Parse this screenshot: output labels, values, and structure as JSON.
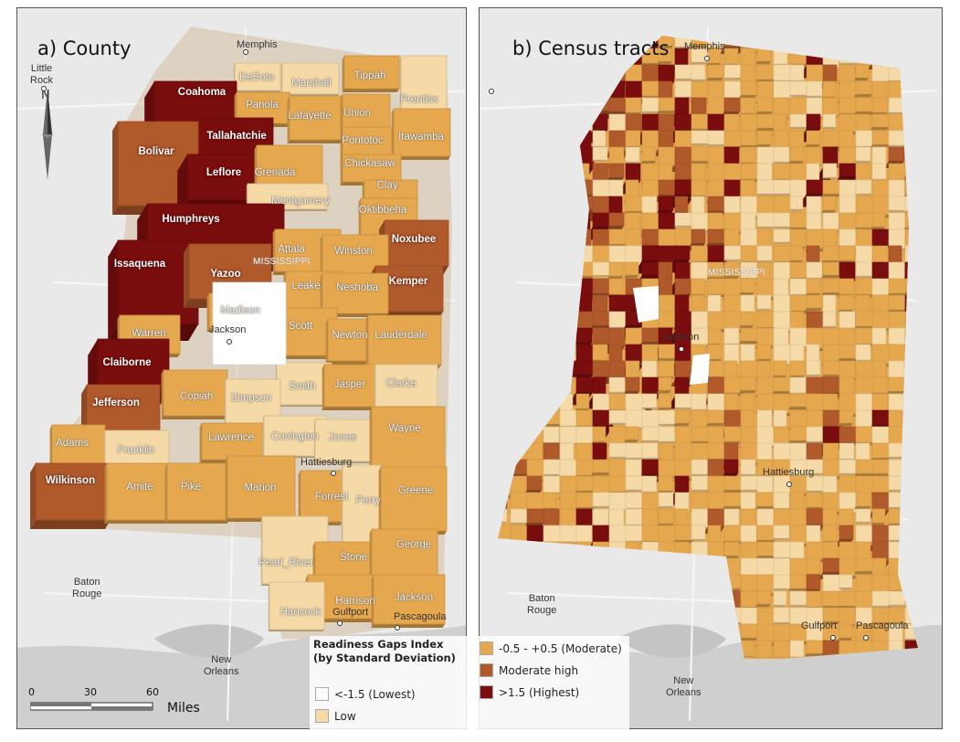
{
  "panels": {
    "a": {
      "title": "a) County",
      "state_label": "MISSISSIPPI",
      "reference_places": {
        "memphis": "Memphis",
        "little_rock": "Little\nRock",
        "baton_rouge": "Baton\nRouge",
        "new_orleans": "New\nOrleans",
        "jackson": "Jackson",
        "hattiesburg": "Hattiesburg",
        "gulfport": "Gulfport",
        "pascagoula": "Pascagoula"
      },
      "counties": {
        "desoto": {
          "name": "DeSoto",
          "class": "low"
        },
        "marshall": {
          "name": "Marshall",
          "class": "low"
        },
        "tippah": {
          "name": "Tippah",
          "class": "moderate"
        },
        "prentiss": {
          "name": "Prentiss",
          "class": "low"
        },
        "coahoma": {
          "name": "Coahoma",
          "class": "highest"
        },
        "panola": {
          "name": "Panola",
          "class": "moderate"
        },
        "lafayette": {
          "name": "Lafayette",
          "class": "moderate"
        },
        "union": {
          "name": "Union",
          "class": "moderate"
        },
        "tallahatchie": {
          "name": "Tallahatchie",
          "class": "highest"
        },
        "pontotoc": {
          "name": "Pontotoc",
          "class": "moderate"
        },
        "itawamba": {
          "name": "Itawamba",
          "class": "moderate"
        },
        "bolivar": {
          "name": "Bolivar",
          "class": "moderate_high"
        },
        "chickasaw": {
          "name": "Chickasaw",
          "class": "moderate"
        },
        "leflore": {
          "name": "Leflore",
          "class": "highest"
        },
        "grenada": {
          "name": "Grenada",
          "class": "moderate"
        },
        "clay": {
          "name": "Clay",
          "class": "moderate"
        },
        "montgomery": {
          "name": "Montgomery",
          "class": "low"
        },
        "oktibbeha": {
          "name": "Oktibbeha",
          "class": "moderate"
        },
        "humphreys": {
          "name": "Humphreys",
          "class": "highest"
        },
        "noxubee": {
          "name": "Noxubee",
          "class": "moderate_high"
        },
        "issaquena": {
          "name": "Issaquena",
          "class": "highest"
        },
        "attala": {
          "name": "Attala",
          "class": "moderate"
        },
        "winston": {
          "name": "Winston",
          "class": "moderate"
        },
        "yazoo": {
          "name": "Yazoo",
          "class": "moderate_high"
        },
        "kemper": {
          "name": "Kemper",
          "class": "moderate_high"
        },
        "leake": {
          "name": "Leake",
          "class": "moderate"
        },
        "neshoba": {
          "name": "Neshoba",
          "class": "moderate"
        },
        "madison": {
          "name": "Madison",
          "class": "moderate"
        },
        "warren": {
          "name": "Warren",
          "class": "moderate"
        },
        "scott": {
          "name": "Scott",
          "class": "moderate"
        },
        "newton": {
          "name": "Newton",
          "class": "moderate"
        },
        "lauderdale": {
          "name": "Lauderdale",
          "class": "moderate"
        },
        "claiborne": {
          "name": "Claiborne",
          "class": "highest"
        },
        "smith": {
          "name": "Smith",
          "class": "low"
        },
        "jasper": {
          "name": "Jasper",
          "class": "moderate"
        },
        "clarke": {
          "name": "Clarke",
          "class": "low"
        },
        "copiah": {
          "name": "Copiah",
          "class": "moderate"
        },
        "simpson": {
          "name": "Simpson",
          "class": "low"
        },
        "jefferson": {
          "name": "Jefferson",
          "class": "moderate_high"
        },
        "lawrence": {
          "name": "Lawrence",
          "class": "moderate"
        },
        "covington": {
          "name": "Covington",
          "class": "low"
        },
        "jones": {
          "name": "Jones",
          "class": "low"
        },
        "adams": {
          "name": "Adams",
          "class": "moderate"
        },
        "franklin": {
          "name": "Franklin",
          "class": "low"
        },
        "wayne": {
          "name": "Wayne",
          "class": "moderate"
        },
        "wilkinson": {
          "name": "Wilkinson",
          "class": "moderate_high"
        },
        "amite": {
          "name": "Amite",
          "class": "moderate"
        },
        "pike": {
          "name": "Pike",
          "class": "moderate"
        },
        "marion": {
          "name": "Marion",
          "class": "moderate"
        },
        "forrest": {
          "name": "Forrest",
          "class": "moderate"
        },
        "perry": {
          "name": "Perry",
          "class": "low"
        },
        "greene": {
          "name": "Greene",
          "class": "moderate"
        },
        "pearl_river": {
          "name": "Pearl_River",
          "class": "low"
        },
        "stone": {
          "name": "Stone",
          "class": "moderate"
        },
        "george": {
          "name": "George",
          "class": "moderate"
        },
        "harrison": {
          "name": "Harrison",
          "class": "moderate"
        },
        "jackson": {
          "name": "Jackson",
          "class": "moderate"
        },
        "hancock": {
          "name": "Hancock",
          "class": "low"
        },
        "hinds": {
          "name": "",
          "class": "lowest"
        }
      },
      "north_arrow": "N",
      "scale_bar": {
        "ticks": [
          "0",
          "30",
          "60"
        ],
        "units": "Miles"
      }
    },
    "b": {
      "title": "b) Census tracts",
      "state_label": "MISSISSIPPI",
      "reference_places": {
        "memphis": "Memphis",
        "baton_rouge": "Baton\nRouge",
        "new_orleans": "New\nOrleans",
        "jackson": "Jackson",
        "hattiesburg": "Hattiesburg",
        "gulfport": "Gulfport",
        "pascagoula": "Pascagoula"
      }
    }
  },
  "legend": {
    "title": "Readiness Gaps Index\n(by Standard Deviation)",
    "items": [
      {
        "key": "lowest",
        "label": "<-1.5 (Lowest)"
      },
      {
        "key": "low",
        "label": "Low"
      },
      {
        "key": "moderate",
        "label": "-0.5 - +0.5 (Moderate)"
      },
      {
        "key": "moderate_high",
        "label": "Moderate high"
      },
      {
        "key": "highest",
        "label": ">1.5 (Highest)"
      }
    ]
  },
  "colors": {
    "lowest": "#ffffff",
    "low": "#f5d9a6",
    "moderate": "#e6a84f",
    "moderate_high": "#b05a2c",
    "highest": "#7a0d0d",
    "background": "#e9e9e9",
    "water": "#cfcfcf"
  }
}
